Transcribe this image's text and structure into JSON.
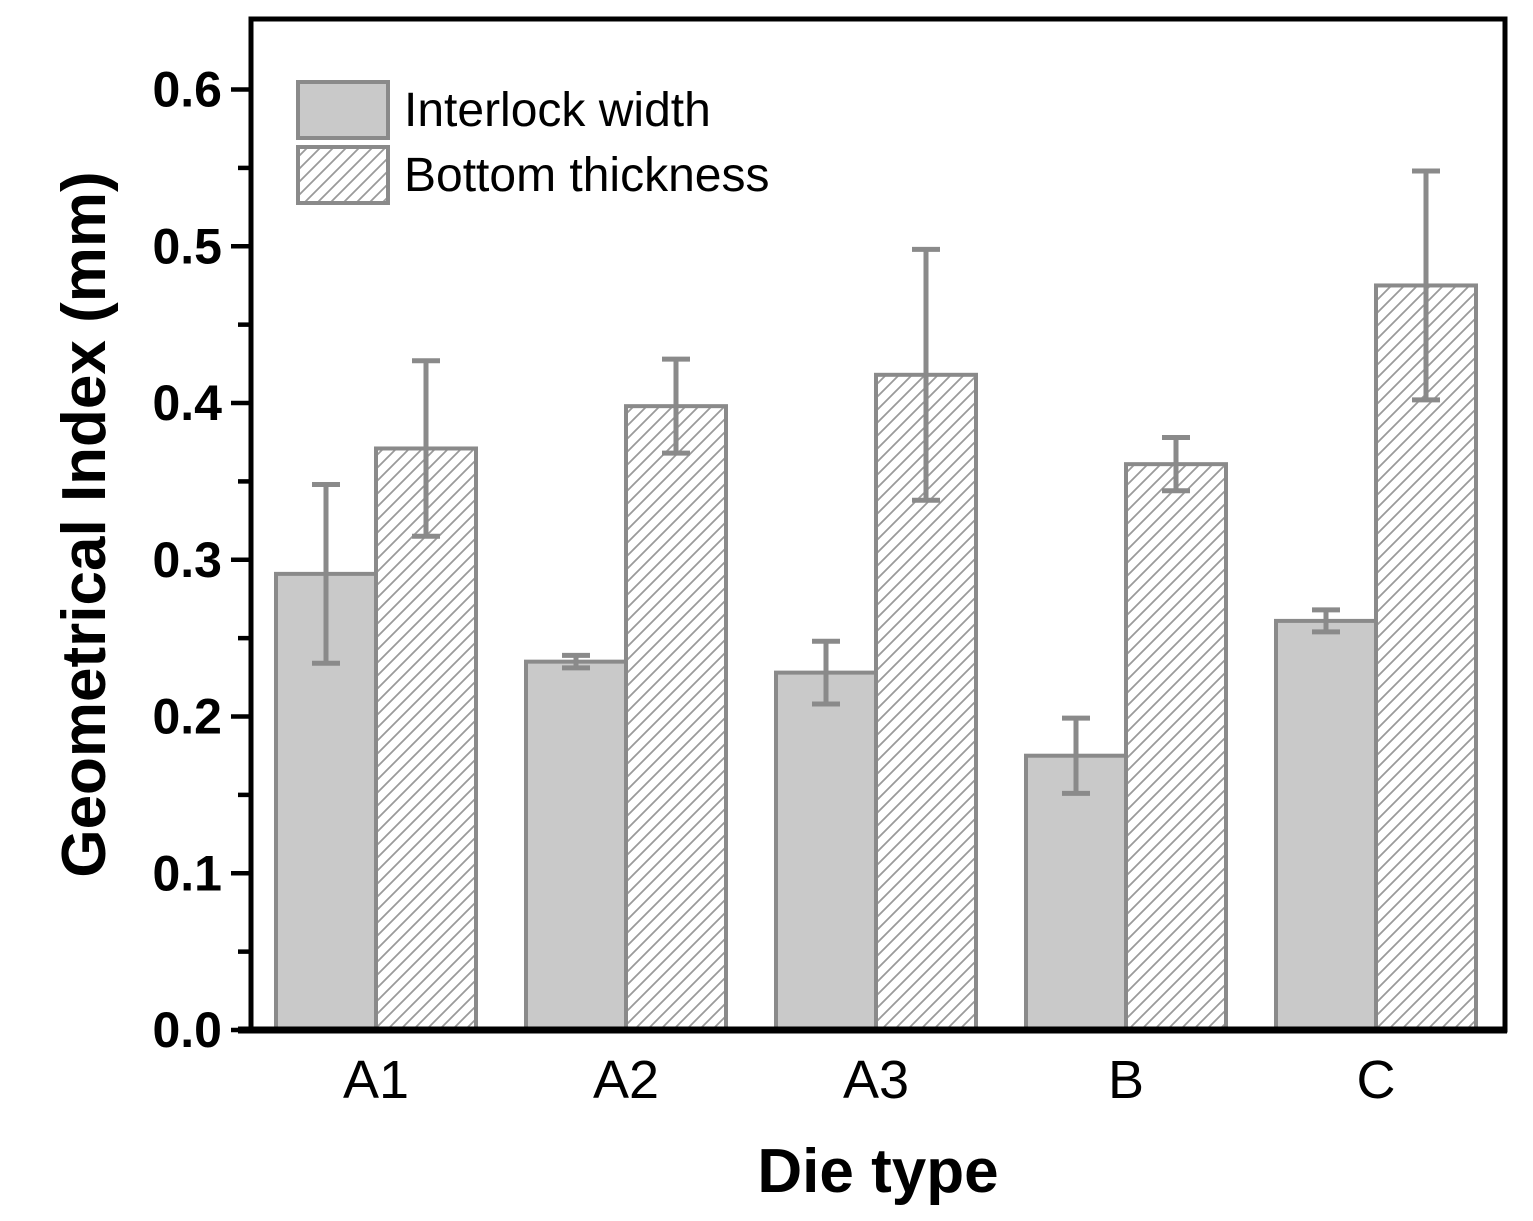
{
  "chart_data": {
    "type": "bar",
    "title": "",
    "xlabel": "Die type",
    "ylabel": "Geometrical Index (mm)",
    "categories": [
      "A1",
      "A2",
      "A3",
      "B",
      "C"
    ],
    "series": [
      {
        "name": "Interlock width",
        "style": "solid",
        "values": [
          0.291,
          0.235,
          0.228,
          0.175,
          0.261
        ],
        "errors": [
          0.057,
          0.004,
          0.02,
          0.024,
          0.007
        ]
      },
      {
        "name": "Bottom thickness",
        "style": "hatched",
        "values": [
          0.371,
          0.398,
          0.418,
          0.361,
          0.475
        ],
        "errors": [
          0.056,
          0.03,
          0.08,
          0.017,
          0.073
        ]
      }
    ],
    "ylim": [
      0,
      0.645
    ],
    "yticks_major": [
      0.0,
      0.1,
      0.2,
      0.3,
      0.4,
      0.5,
      0.6
    ],
    "ytick_labels": [
      "0.0",
      "0.1",
      "0.2",
      "0.3",
      "0.4",
      "0.5",
      "0.6"
    ],
    "yminor_step": 0.05,
    "grid": false,
    "legend_position": "top-left",
    "error_bars": true
  },
  "colors": {
    "bar_fill": "#c9c9c9",
    "bar_border": "#8a8a8a",
    "error_bar": "#8a8a8a",
    "hatch_line": "#9a9a9a",
    "axis": "#000000",
    "text": "#000000",
    "background": "#ffffff"
  }
}
